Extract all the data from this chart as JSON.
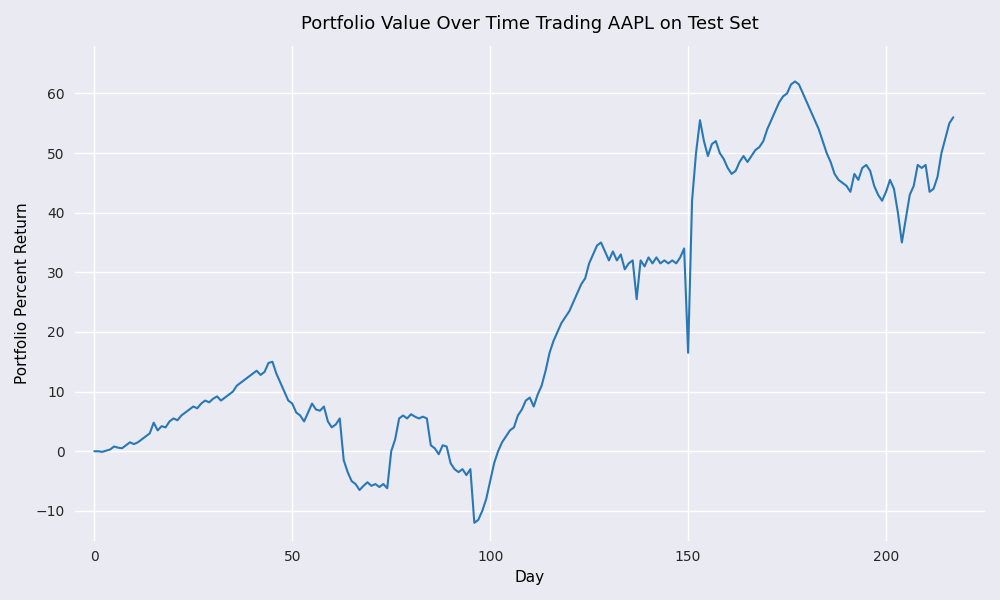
{
  "title": "Portfolio Value Over Time Trading AAPL on Test Set",
  "xlabel": "Day",
  "ylabel": "Portfolio Percent Return",
  "line_color": "#2878b5",
  "line_width": 1.5,
  "bg_color": "#eaeaf2",
  "grid_color": "white",
  "figsize": [
    10,
    6
  ],
  "dpi": 100,
  "xlim": [
    -5,
    225
  ],
  "ylim": [
    -15,
    68
  ],
  "xticks": [
    0,
    50,
    100,
    150,
    200
  ],
  "yticks": [
    -10,
    0,
    10,
    20,
    30,
    40,
    50,
    60
  ],
  "y_values": [
    0.0,
    0.0,
    -0.1,
    0.1,
    0.3,
    0.8,
    0.6,
    0.5,
    1.0,
    1.5,
    1.2,
    1.5,
    2.0,
    2.5,
    3.0,
    4.8,
    3.5,
    4.2,
    4.0,
    5.0,
    5.5,
    5.2,
    6.0,
    6.5,
    7.0,
    7.5,
    7.2,
    8.0,
    8.5,
    8.2,
    8.8,
    9.2,
    8.5,
    9.0,
    9.5,
    10.0,
    11.0,
    11.5,
    12.0,
    12.5,
    13.0,
    13.5,
    12.8,
    13.3,
    14.8,
    15.0,
    13.0,
    11.5,
    10.0,
    8.5,
    8.0,
    6.5,
    6.0,
    5.0,
    6.5,
    8.0,
    7.0,
    6.8,
    7.5,
    5.0,
    4.0,
    4.5,
    5.5,
    -1.5,
    -3.5,
    -5.0,
    -5.5,
    -6.5,
    -5.8,
    -5.2,
    -5.8,
    -5.5,
    -6.0,
    -5.5,
    -6.2,
    0.0,
    2.0,
    5.5,
    6.0,
    5.5,
    6.2,
    5.8,
    5.5,
    5.8,
    5.5,
    1.0,
    0.5,
    -0.5,
    1.0,
    0.8,
    -2.0,
    -3.0,
    -3.5,
    -3.0,
    -4.0,
    -3.0,
    -12.0,
    -11.5,
    -10.0,
    -8.0,
    -5.0,
    -2.0,
    0.0,
    1.5,
    2.5,
    3.5,
    4.0,
    6.0,
    7.0,
    8.5,
    9.0,
    7.5,
    9.5,
    11.0,
    13.5,
    16.5,
    18.5,
    20.0,
    21.5,
    22.5,
    23.5,
    25.0,
    26.5,
    28.0,
    29.0,
    31.5,
    33.0,
    34.5,
    35.0,
    33.5,
    32.0,
    33.5,
    32.0,
    33.0,
    30.5,
    31.5,
    32.0,
    25.5,
    32.0,
    31.0,
    32.5,
    31.5,
    32.5,
    31.5,
    32.0,
    31.5,
    32.0,
    31.5,
    32.5,
    34.0,
    16.5,
    42.0,
    50.0,
    55.5,
    52.0,
    49.5,
    51.5,
    52.0,
    50.0,
    49.0,
    47.5,
    46.5,
    47.0,
    48.5,
    49.5,
    48.5,
    49.5,
    50.5,
    51.0,
    52.0,
    54.0,
    55.5,
    57.0,
    58.5,
    59.5,
    60.0,
    61.5,
    62.0,
    61.5,
    60.0,
    58.5,
    57.0,
    55.5,
    54.0,
    52.0,
    50.0,
    48.5,
    46.5,
    45.5,
    45.0,
    44.5,
    43.5,
    46.5,
    45.5,
    47.5,
    48.0,
    47.0,
    44.5,
    43.0,
    42.0,
    43.5,
    45.5,
    44.0,
    40.0,
    35.0,
    39.0,
    43.0,
    44.5,
    48.0,
    47.5,
    48.0,
    43.5,
    44.0,
    46.0,
    50.0,
    52.5,
    55.0,
    56.0
  ]
}
